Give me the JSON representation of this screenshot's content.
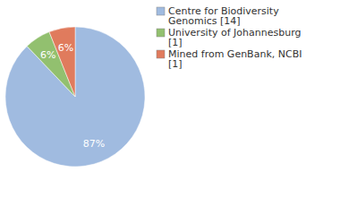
{
  "chart_data": {
    "type": "pie",
    "categories": [
      "Centre for Biodiversity Genomics [14]",
      "University of Johannesburg [1]",
      "Mined from GenBank, NCBI [1]"
    ],
    "values": [
      87,
      6,
      6
    ],
    "value_labels": [
      "87%",
      "6%",
      "6%"
    ],
    "colors": [
      "#a0bbe0",
      "#92c06f",
      "#e07b5d"
    ],
    "data_labels": true,
    "legend": "top-right"
  }
}
